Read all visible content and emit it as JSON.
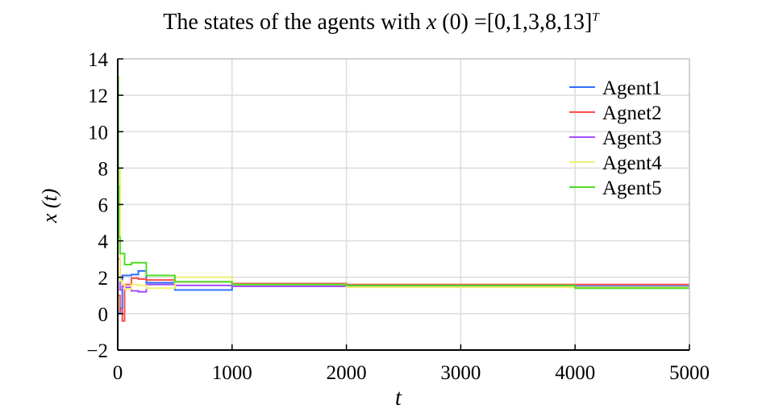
{
  "chart_data": {
    "type": "line",
    "title": "The states of the agents with x (0) =[0,1,3,8,13]T",
    "title_parts": {
      "prefix": "The states of the agents with ",
      "var": "x",
      "mid": " (0) =[0,1,3,8,13]",
      "sup": "T"
    },
    "xlabel": "t",
    "ylabel": "x (t)",
    "xlim": [
      0,
      5000
    ],
    "ylim": [
      -2,
      14
    ],
    "xticks": [
      0,
      1000,
      2000,
      3000,
      4000,
      5000
    ],
    "yticks": [
      -2,
      0,
      2,
      4,
      6,
      8,
      10,
      12,
      14
    ],
    "ytick_labels": [
      "−2",
      "0",
      "2",
      "4",
      "6",
      "8",
      "10",
      "12",
      "14"
    ],
    "grid": true,
    "legend_position": "top-right",
    "series": [
      {
        "name": "Agent1",
        "color": "#2f6fff",
        "x": [
          0,
          20,
          40,
          60,
          120,
          180,
          250,
          500,
          1000,
          2000,
          4000,
          5000
        ],
        "y": [
          0,
          0.3,
          2.1,
          2.1,
          2.15,
          2.35,
          1.7,
          1.3,
          1.65,
          1.55,
          1.5,
          1.5
        ]
      },
      {
        "name": "Agnet2",
        "color": "#ff4d4d",
        "x": [
          0,
          20,
          40,
          60,
          120,
          180,
          250,
          500,
          1000,
          2000,
          4000,
          5000
        ],
        "y": [
          1,
          0.2,
          -0.4,
          1.6,
          1.95,
          1.9,
          1.85,
          1.75,
          1.65,
          1.6,
          1.6,
          1.6
        ]
      },
      {
        "name": "Agent3",
        "color": "#a64dff",
        "x": [
          0,
          20,
          40,
          60,
          120,
          180,
          250,
          500,
          1000,
          2000,
          4000,
          5000
        ],
        "y": [
          3,
          1.3,
          1.5,
          1.45,
          1.25,
          1.2,
          1.6,
          1.55,
          1.5,
          1.5,
          1.45,
          1.45
        ]
      },
      {
        "name": "Agent4",
        "color": "#f0f06e",
        "x": [
          0,
          20,
          40,
          60,
          120,
          180,
          250,
          500,
          1000,
          2000,
          4000,
          5000
        ],
        "y": [
          8,
          1.8,
          1.6,
          1.35,
          1.6,
          1.55,
          1.4,
          2.0,
          1.6,
          1.45,
          1.45,
          1.45
        ]
      },
      {
        "name": "Agent5",
        "color": "#4ddd22",
        "x": [
          0,
          5,
          10,
          20,
          40,
          60,
          120,
          180,
          250,
          500,
          1000,
          2000,
          4000,
          5000
        ],
        "y": [
          13,
          7,
          4.2,
          3.3,
          3.3,
          2.7,
          2.8,
          2.8,
          2.1,
          1.75,
          1.6,
          1.55,
          1.4,
          1.4
        ]
      }
    ]
  }
}
